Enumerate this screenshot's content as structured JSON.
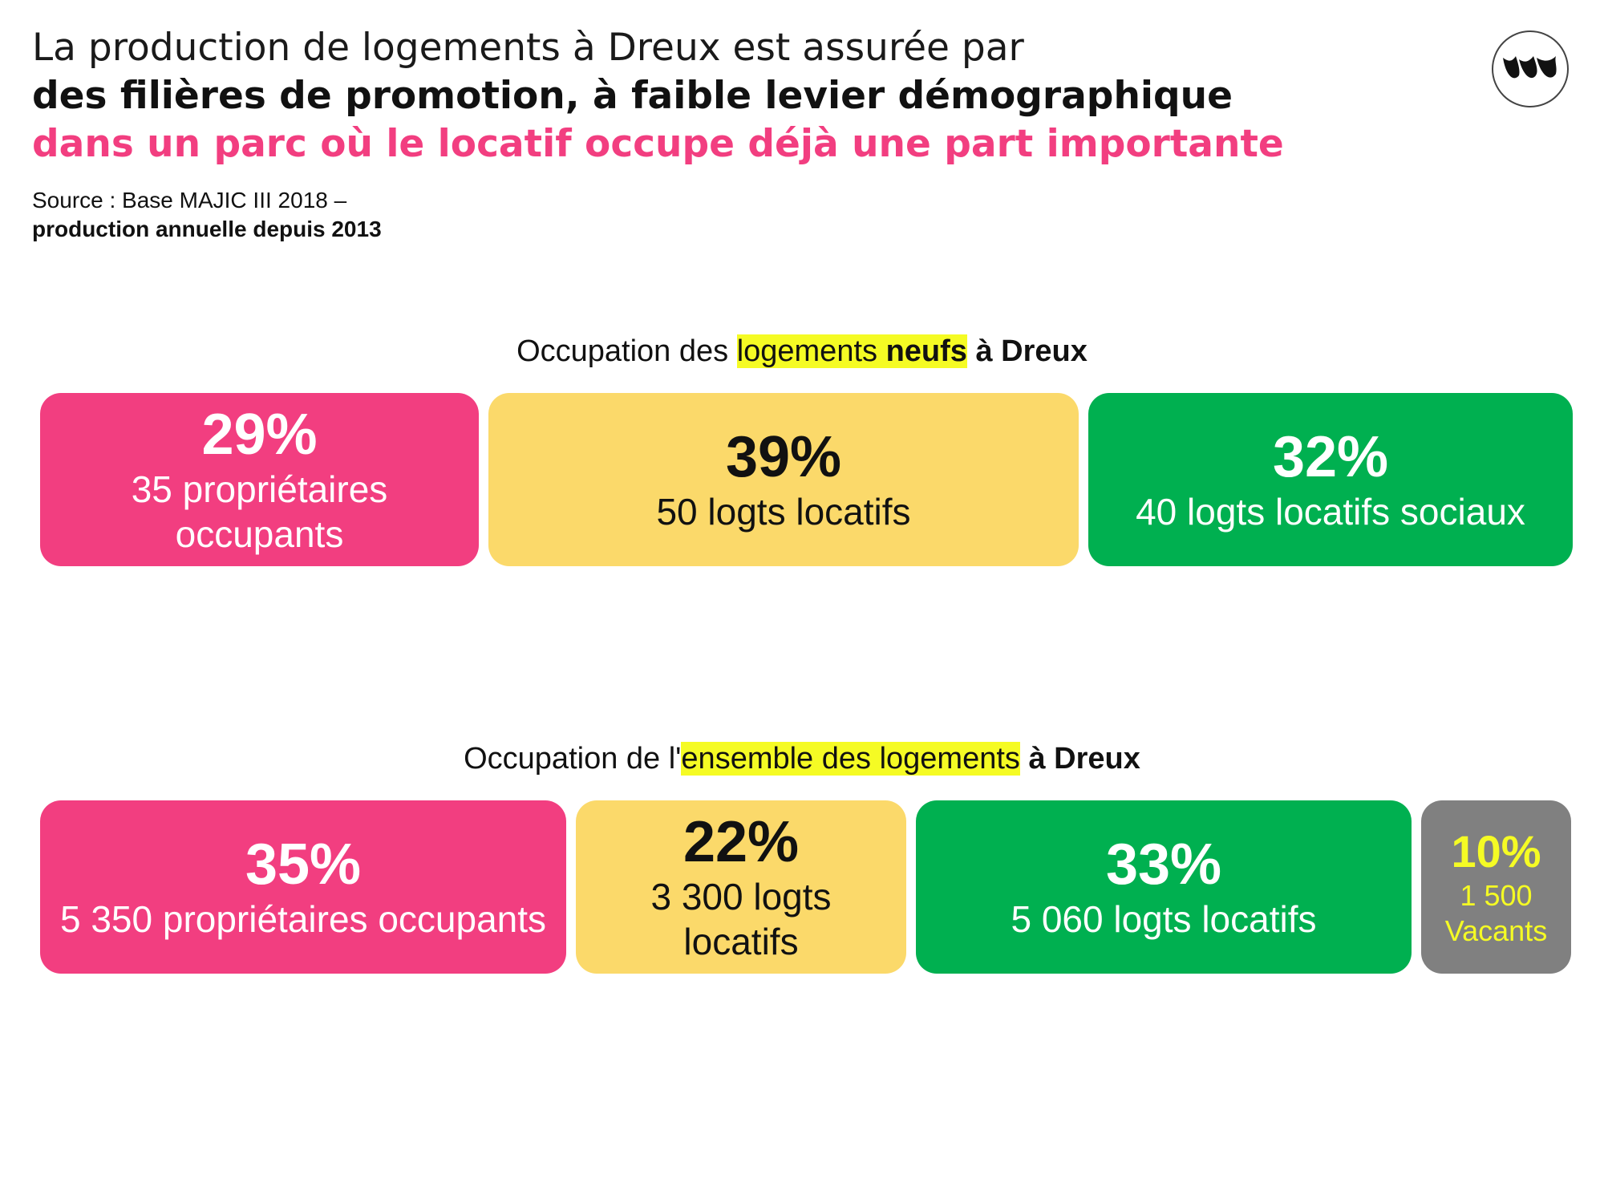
{
  "header": {
    "title_line1": "La production de logements à Dreux est assurée par",
    "title_line2": "des filières de promotion, à faible levier démographique",
    "title_line3": "dans un parc où le locatif occupe déjà une part importante",
    "source_line1": "Source : Base MAJIC III 2018 –",
    "source_line2": "production annuelle depuis 2013"
  },
  "colors": {
    "pink": "#f23e80",
    "yellow": "#fbd96a",
    "green": "#00b050",
    "gray": "#808080",
    "highlight": "#f5fb24"
  },
  "logo": {
    "icon": "brand-logo-icon"
  },
  "chart_data": [
    {
      "type": "bar",
      "orientation": "horizontal-stacked",
      "title": {
        "part1": "Occupation des ",
        "part2_highlight": "logements ",
        "part3_highlight_bold": "neufs",
        "part4_bold": " à Dreux"
      },
      "categories": [
        "35 propriétaires occupants",
        "50 logts locatifs",
        "40 logts locatifs sociaux"
      ],
      "values": [
        29,
        39,
        32
      ],
      "pct_labels": [
        "29%",
        "39%",
        "32%"
      ],
      "counts": [
        35,
        50,
        40
      ],
      "colors": [
        "#f23e80",
        "#fbd96a",
        "#00b050"
      ],
      "text_colors": [
        "#ffffff",
        "#111111",
        "#ffffff"
      ]
    },
    {
      "type": "bar",
      "orientation": "horizontal-stacked",
      "title": {
        "part1": "Occupation de l'",
        "part2_highlight": "ensemble des logements",
        "part3_highlight_bold": "",
        "part4_bold": " à Dreux"
      },
      "categories": [
        "5 350 propriétaires occupants",
        "3 300 logts locatifs",
        "5 060 logts locatifs",
        "1 500 Vacants"
      ],
      "values": [
        35,
        22,
        33,
        10
      ],
      "pct_labels": [
        "35%",
        "22%",
        "33%",
        "10%"
      ],
      "counts": [
        5350,
        3300,
        5060,
        1500
      ],
      "colors": [
        "#f23e80",
        "#fbd96a",
        "#00b050",
        "#808080"
      ],
      "text_colors": [
        "#ffffff",
        "#111111",
        "#ffffff",
        "#f5fb24"
      ]
    }
  ]
}
